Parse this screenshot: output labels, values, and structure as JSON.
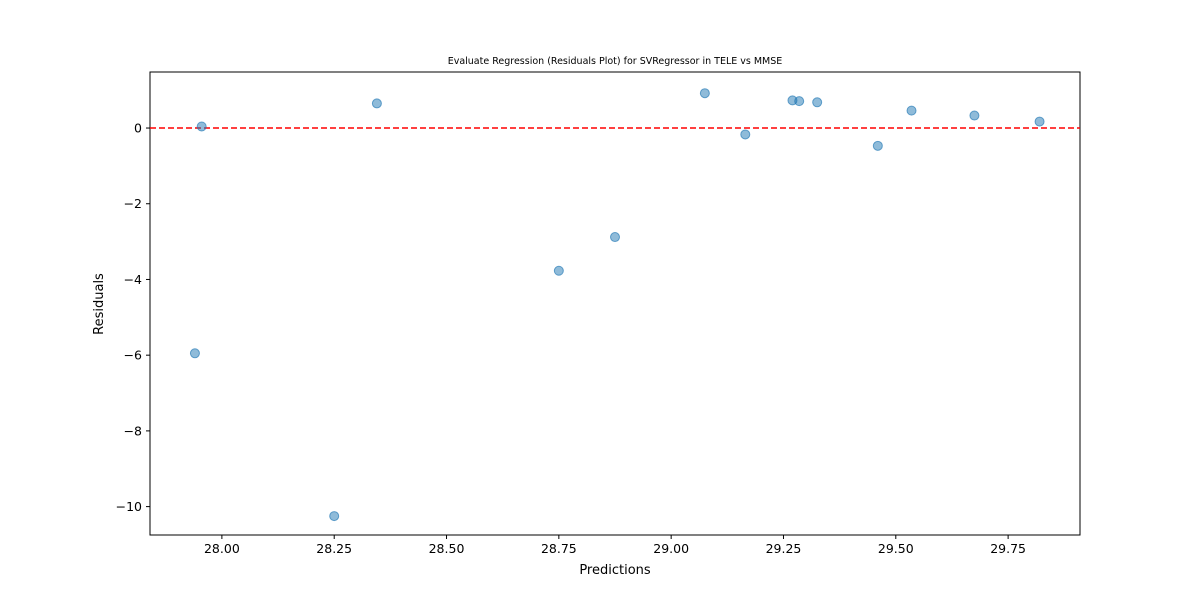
{
  "chart_data": {
    "type": "scatter",
    "title": "Evaluate Regression (Residuals Plot) for SVRegressor in TELE vs MMSE",
    "xlabel": "Predictions",
    "ylabel": "Residuals",
    "xlim": [
      27.84,
      29.91
    ],
    "ylim": [
      -10.75,
      1.48
    ],
    "x_ticks": [
      28.0,
      28.25,
      28.5,
      28.75,
      29.0,
      29.25,
      29.5,
      29.75
    ],
    "x_tick_labels": [
      "28.00",
      "28.25",
      "28.50",
      "28.75",
      "29.00",
      "29.25",
      "29.50",
      "29.75"
    ],
    "y_ticks": [
      -10,
      -8,
      -6,
      -4,
      -2,
      0
    ],
    "y_tick_labels": [
      "−10",
      "−8",
      "−6",
      "−4",
      "−2",
      "0"
    ],
    "grid": false,
    "reference_line": {
      "y": 0,
      "color": "#ff0000",
      "style": "dashed"
    },
    "point_color": "#1f77b4",
    "point_alpha": 0.5,
    "points": [
      {
        "x": 27.94,
        "y": -5.95
      },
      {
        "x": 27.955,
        "y": 0.04
      },
      {
        "x": 28.25,
        "y": -10.25
      },
      {
        "x": 28.345,
        "y": 0.65
      },
      {
        "x": 28.75,
        "y": -3.77
      },
      {
        "x": 28.875,
        "y": -2.88
      },
      {
        "x": 29.075,
        "y": 0.92
      },
      {
        "x": 29.165,
        "y": -0.17
      },
      {
        "x": 29.27,
        "y": 0.73
      },
      {
        "x": 29.285,
        "y": 0.71
      },
      {
        "x": 29.325,
        "y": 0.68
      },
      {
        "x": 29.46,
        "y": -0.47
      },
      {
        "x": 29.535,
        "y": 0.46
      },
      {
        "x": 29.675,
        "y": 0.33
      },
      {
        "x": 29.82,
        "y": 0.17
      }
    ]
  }
}
